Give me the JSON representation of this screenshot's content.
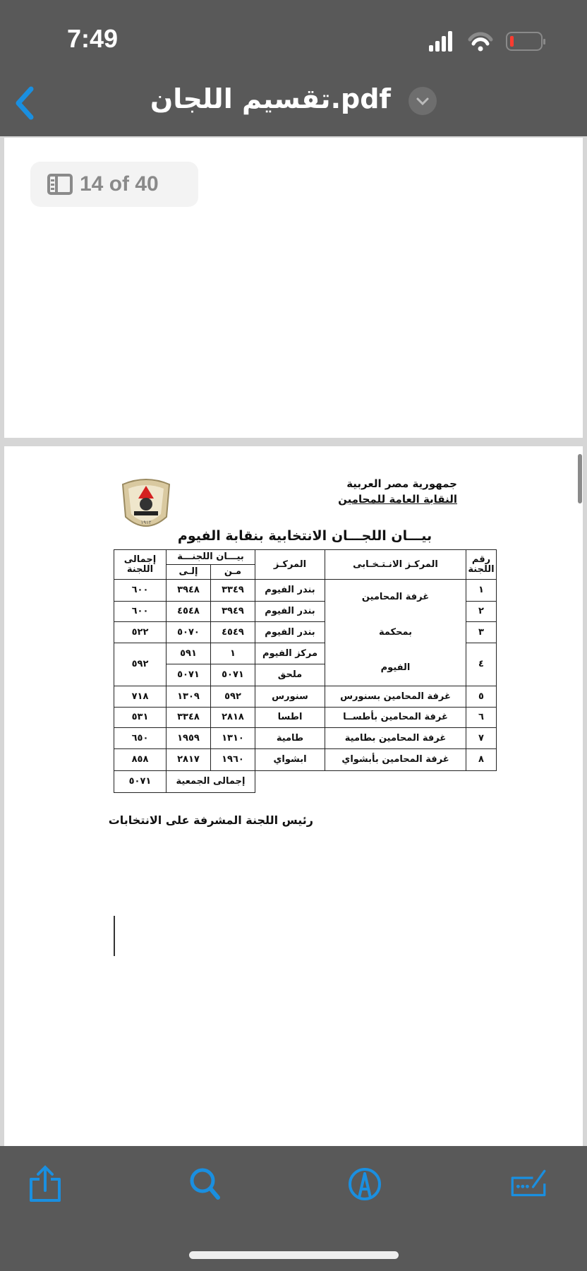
{
  "status_bar": {
    "time": "7:49"
  },
  "nav": {
    "title": "تقسيم اللجان.pdf",
    "back_icon": "chevron-left-icon",
    "menu_icon": "chevron-down-icon",
    "accent": "#1a8fe0"
  },
  "page_indicator": {
    "label": "14 of 40",
    "icon": "sidebar-icon"
  },
  "document": {
    "header_line1": "جمهورية مصر العربية",
    "header_line2": "النقابة العامة للمحامين",
    "title": "بيـــان اللجـــان الانتخابية بنقابة الفيوم",
    "table": {
      "headers": {
        "num": "رقم اللجنة",
        "center": "المركـز الانـتـخـابى",
        "markaz": "المركـز",
        "range": "بيـــان اللجنـــة",
        "from": "مـن",
        "to": "إلـى",
        "total": "إجمالى اللجنة"
      },
      "merged_center": [
        "غرفة المحامين",
        "بمحكمة",
        "الفيوم"
      ],
      "rows": [
        {
          "num": "١",
          "markaz": "بندر الفيوم",
          "from": "٣٣٤٩",
          "to": "٣٩٤٨",
          "total": "٦٠٠"
        },
        {
          "num": "٢",
          "markaz": "بندر الفيوم",
          "from": "٣٩٤٩",
          "to": "٤٥٤٨",
          "total": "٦٠٠"
        },
        {
          "num": "٣",
          "markaz": "بندر الفيوم",
          "from": "٤٥٤٩",
          "to": "٥٠٧٠",
          "total": "٥٢٢"
        },
        {
          "num": "٤",
          "markaz": "مركز الفيوم",
          "from": "١",
          "to": "٥٩١",
          "total": "٥٩٢"
        },
        {
          "markaz": "ملحق",
          "from": "٥٠٧١",
          "to": "٥٠٧١"
        },
        {
          "num": "٥",
          "center": "غرفة المحامين بسنورس",
          "markaz": "سنورس",
          "from": "٥٩٢",
          "to": "١٣٠٩",
          "total": "٧١٨"
        },
        {
          "num": "٦",
          "center": "غرفة المحامين بأطســا",
          "markaz": "اطسا",
          "from": "٢٨١٨",
          "to": "٣٣٤٨",
          "total": "٥٣١"
        },
        {
          "num": "٧",
          "center": "غرفة المحامين بطامية",
          "markaz": "طامية",
          "from": "١٣١٠",
          "to": "١٩٥٩",
          "total": "٦٥٠"
        },
        {
          "num": "٨",
          "center": "غرفة المحامين بأبشواي",
          "markaz": "ابشواي",
          "from": "١٩٦٠",
          "to": "٢٨١٧",
          "total": "٨٥٨"
        }
      ],
      "grand_total_label": "إجمالى الجمعية",
      "grand_total": "٥٠٧١"
    },
    "footer": "رئيس اللجنة المشرفة على الانتخابات",
    "logo_text": "١٩١٢"
  },
  "toolbar": {
    "icons": [
      "share-icon",
      "search-icon",
      "markup-icon",
      "form-fill-icon"
    ]
  }
}
